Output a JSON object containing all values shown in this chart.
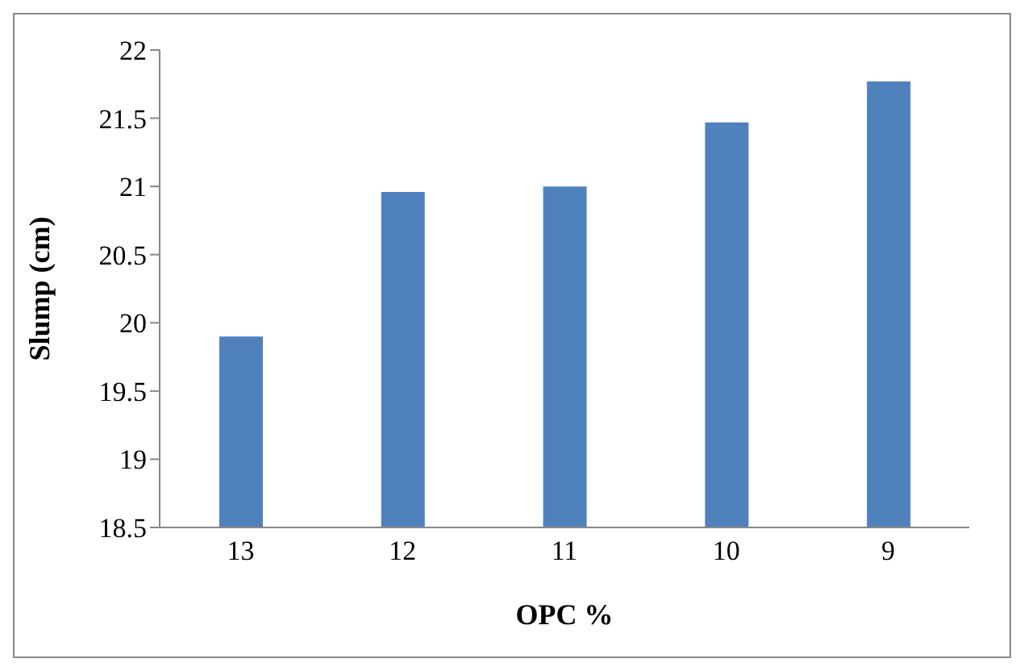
{
  "chart_data": {
    "type": "bar",
    "xlabel": "OPC %",
    "ylabel": "Slump (cm)",
    "categories": [
      "13",
      "12",
      "11",
      "10",
      "9"
    ],
    "values": [
      19.9,
      20.96,
      21.0,
      21.47,
      21.77
    ],
    "color": "#4f81bd",
    "ylim": [
      18.5,
      22
    ],
    "yticks": [
      18.5,
      19,
      19.5,
      20,
      20.5,
      21,
      21.5,
      22
    ],
    "grid": false
  }
}
